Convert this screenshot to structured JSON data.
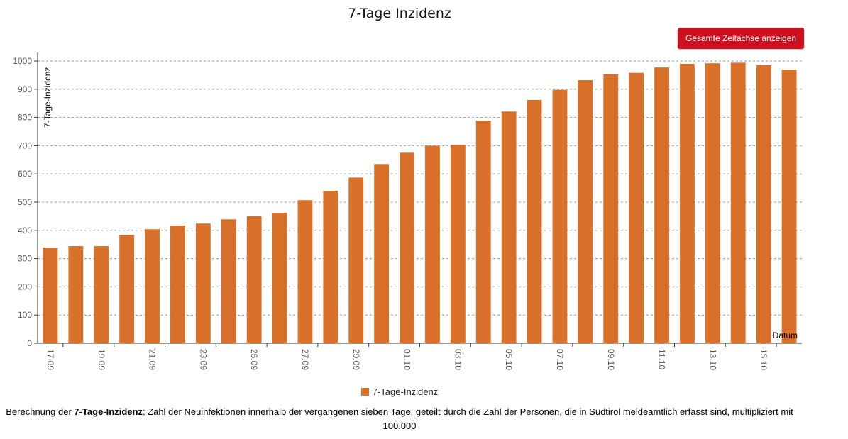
{
  "chart_data": {
    "type": "bar",
    "title": "7-Tage Inzidenz",
    "ylabel": "7-Tage-Inzidenz",
    "xlabel": "Datum",
    "ylim": [
      0,
      1000
    ],
    "yticks": [
      0,
      100,
      200,
      300,
      400,
      500,
      600,
      700,
      800,
      900,
      1000
    ],
    "grid": true,
    "legend_position": "bottom",
    "color": "#d9702a",
    "categories": [
      "17.09",
      "18.09",
      "19.09",
      "20.09",
      "21.09",
      "22.09",
      "23.09",
      "24.09",
      "25.09",
      "26.09",
      "27.09",
      "28.09",
      "29.09",
      "30.09",
      "01.10",
      "02.10",
      "03.10",
      "04.10",
      "05.10",
      "06.10",
      "07.10",
      "08.10",
      "09.10",
      "10.10",
      "11.10",
      "12.10",
      "13.10",
      "14.10",
      "15.10",
      "16.10"
    ],
    "tick_labels": [
      "17.09",
      "19.09",
      "21.09",
      "23.09",
      "25.09",
      "27.09",
      "29.09",
      "01.10",
      "03.10",
      "05.10",
      "07.10",
      "09.10",
      "11.10",
      "13.10",
      "15.10"
    ],
    "series": [
      {
        "name": "7-Tage-Inzidenz",
        "values": [
          339,
          344,
          344,
          384,
          404,
          417,
          424,
          439,
          450,
          462,
          507,
          540,
          587,
          635,
          675,
          700,
          703,
          789,
          821,
          862,
          898,
          932,
          953,
          958,
          977,
          990,
          992,
          994,
          985,
          969
        ]
      }
    ]
  },
  "toolbar": {
    "reset_zoom_label": "Gesamte Zeitachse anzeigen"
  },
  "footnote": {
    "prefix": "Berechnung der ",
    "term": "7-Tage-Inzidenz",
    "text": ": Zahl der Neuinfektionen innerhalb der vergangenen sieben Tage, geteilt durch die Zahl der Personen, die in Südtirol meldeamtlich erfasst sind, multipliziert mit 100.000"
  }
}
